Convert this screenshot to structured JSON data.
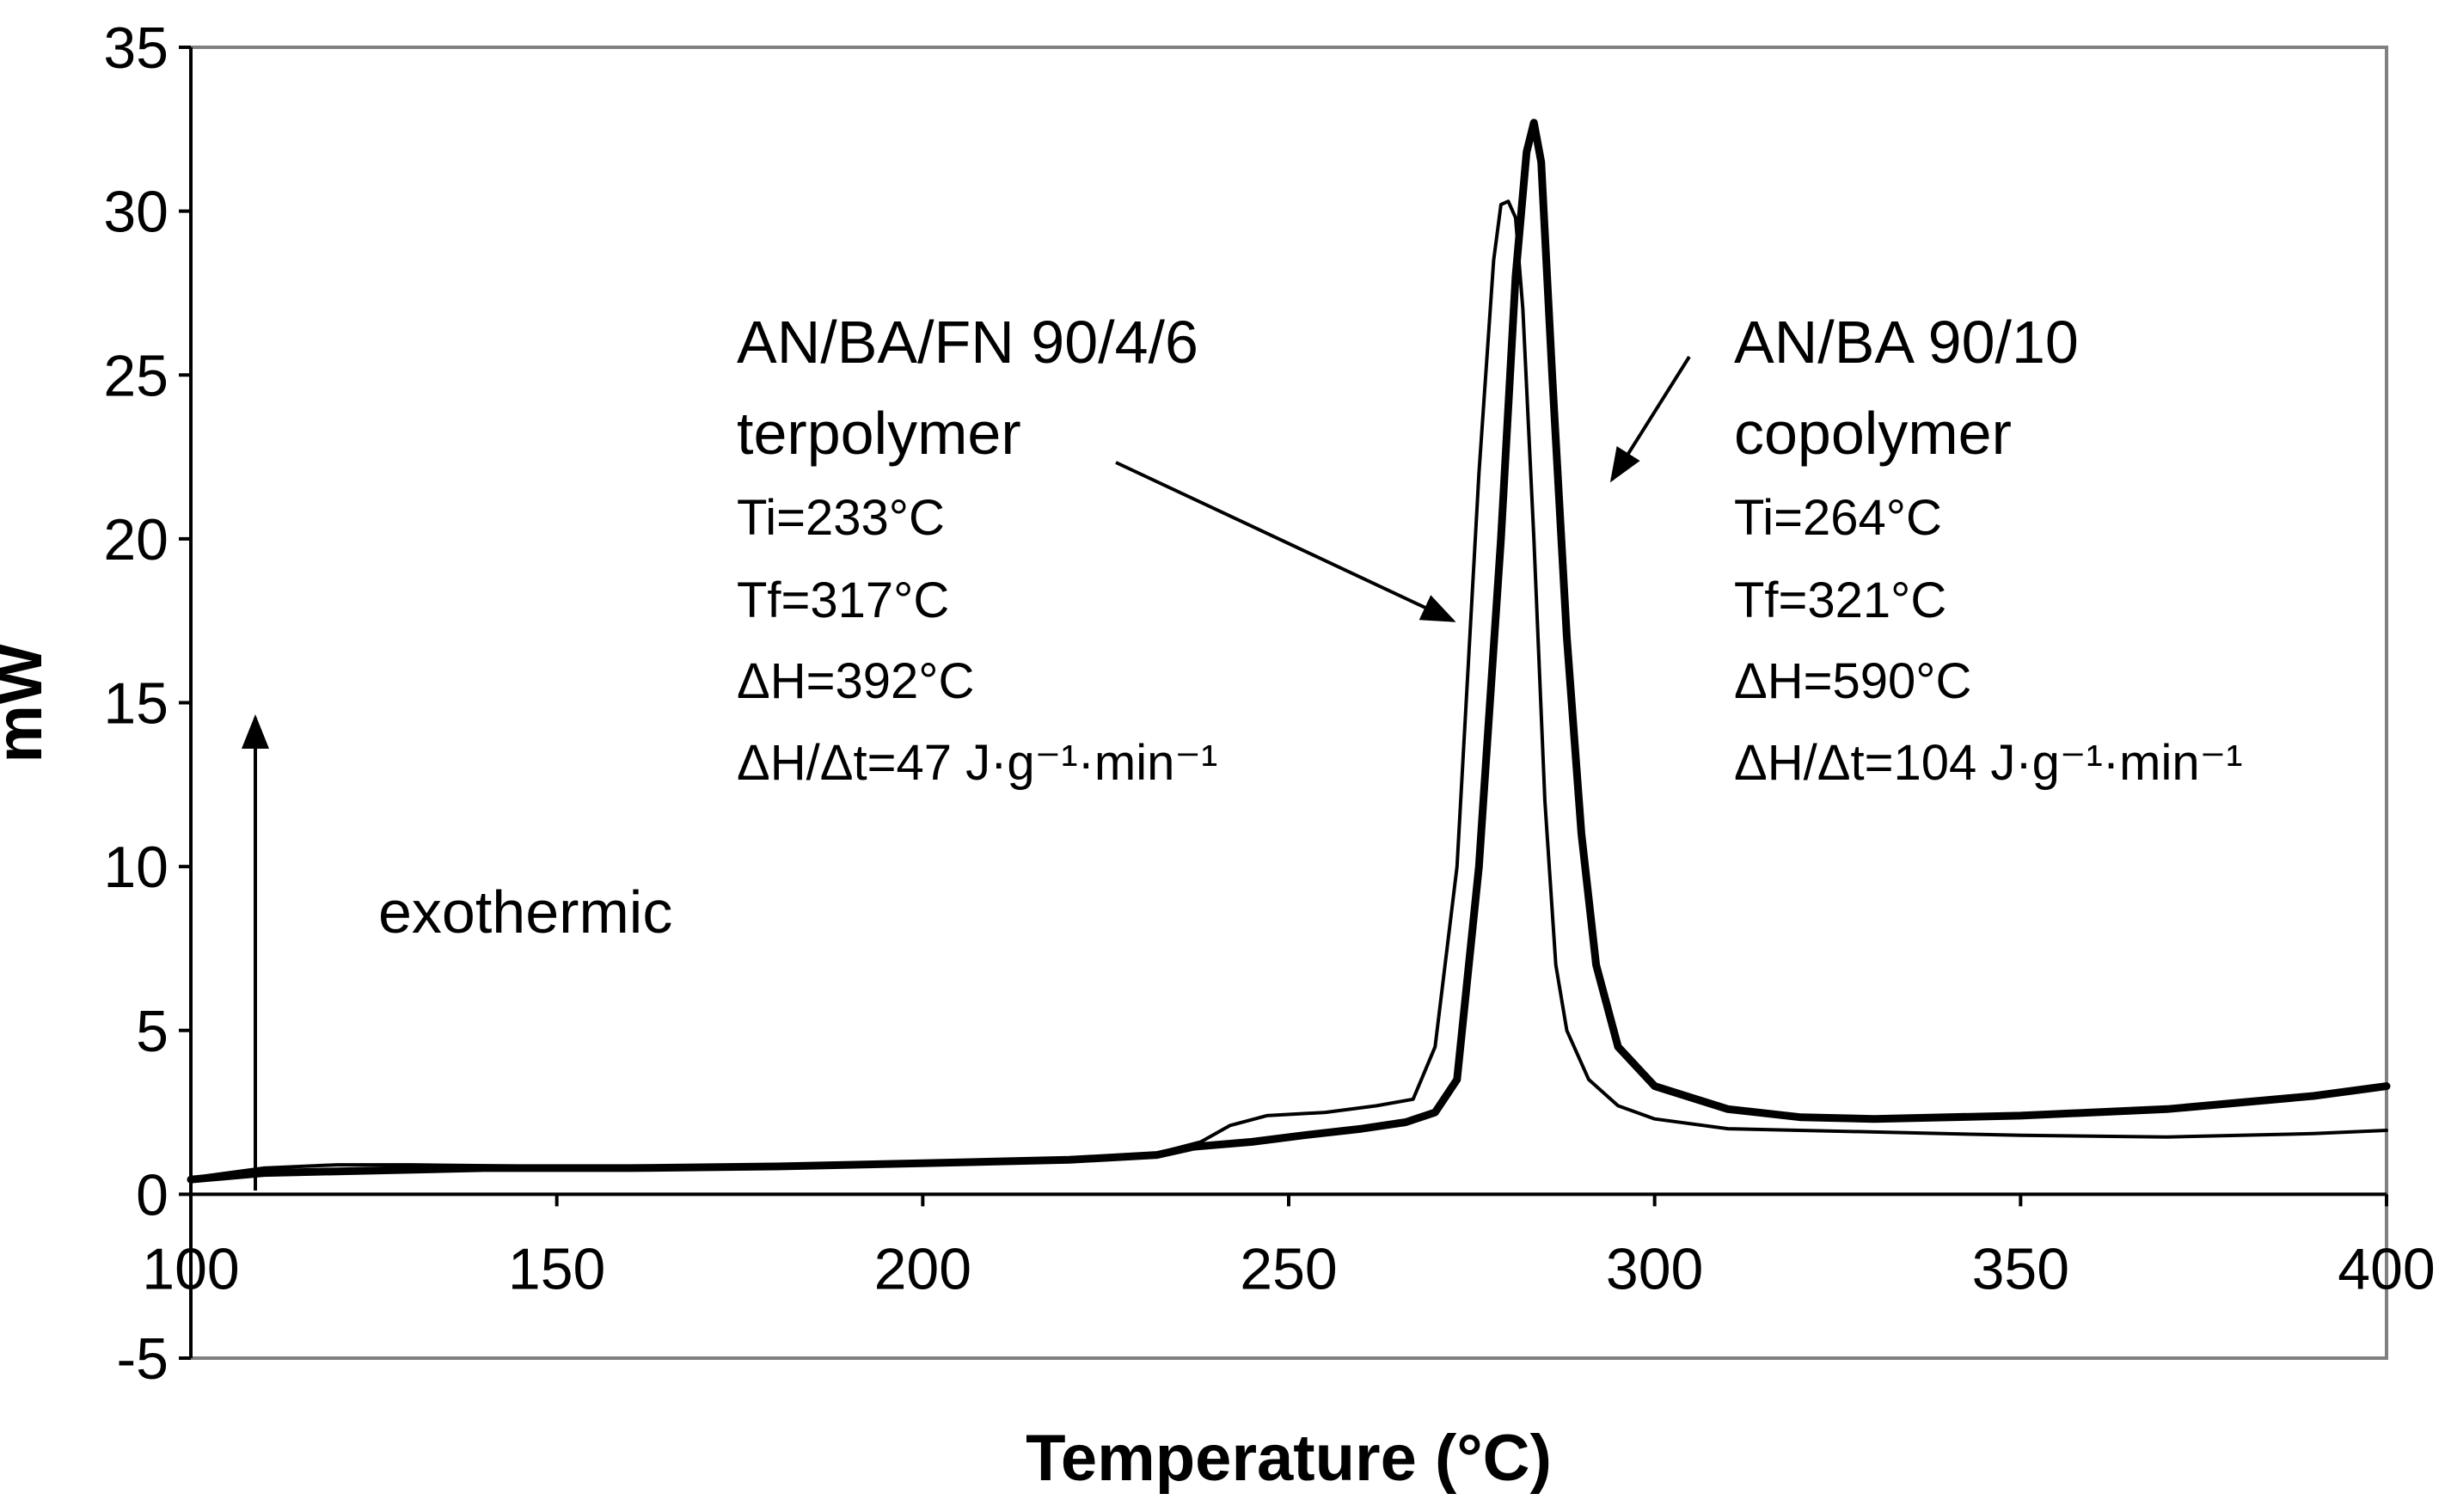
{
  "chart_data": {
    "type": "line",
    "title": "",
    "xlabel": "Temperature (°C)",
    "ylabel": "mW",
    "xlim": [
      100,
      400
    ],
    "ylim": [
      -5,
      35
    ],
    "xticks": [
      100,
      150,
      200,
      250,
      300,
      350,
      400
    ],
    "yticks": [
      35,
      30,
      25,
      20,
      15,
      10,
      5,
      0,
      -5
    ],
    "grid": false,
    "series": [
      {
        "style": "thin",
        "color": "#000000",
        "points": [
          [
            100,
            0.5
          ],
          [
            110,
            0.8
          ],
          [
            120,
            0.9
          ],
          [
            130,
            0.9
          ],
          [
            150,
            0.85
          ],
          [
            170,
            0.85
          ],
          [
            200,
            0.95
          ],
          [
            220,
            1.1
          ],
          [
            232,
            1.25
          ],
          [
            238,
            1.6
          ],
          [
            242,
            2.1
          ],
          [
            247,
            2.4
          ],
          [
            255,
            2.5
          ],
          [
            262,
            2.7
          ],
          [
            267,
            2.9
          ],
          [
            270,
            4.5
          ],
          [
            273,
            10
          ],
          [
            276,
            22
          ],
          [
            278,
            28.5
          ],
          [
            279,
            30.2
          ],
          [
            280,
            30.3
          ],
          [
            281,
            29.8
          ],
          [
            282,
            27
          ],
          [
            283.5,
            20
          ],
          [
            285,
            12
          ],
          [
            286.5,
            7
          ],
          [
            288,
            5
          ],
          [
            291,
            3.5
          ],
          [
            295,
            2.7
          ],
          [
            300,
            2.3
          ],
          [
            310,
            2.0
          ],
          [
            330,
            1.9
          ],
          [
            350,
            1.8
          ],
          [
            370,
            1.75
          ],
          [
            390,
            1.85
          ],
          [
            400,
            1.95
          ]
        ]
      },
      {
        "style": "thick",
        "color": "#000000",
        "points": [
          [
            100,
            0.45
          ],
          [
            110,
            0.65
          ],
          [
            120,
            0.7
          ],
          [
            140,
            0.8
          ],
          [
            160,
            0.8
          ],
          [
            180,
            0.85
          ],
          [
            200,
            0.95
          ],
          [
            220,
            1.05
          ],
          [
            232,
            1.2
          ],
          [
            237,
            1.45
          ],
          [
            245,
            1.6
          ],
          [
            252,
            1.8
          ],
          [
            260,
            2.0
          ],
          [
            266,
            2.2
          ],
          [
            270,
            2.5
          ],
          [
            273,
            3.5
          ],
          [
            276,
            10
          ],
          [
            279,
            20
          ],
          [
            281,
            28
          ],
          [
            282.5,
            31.8
          ],
          [
            283.5,
            32.7
          ],
          [
            284.5,
            31.5
          ],
          [
            286,
            25
          ],
          [
            288,
            17
          ],
          [
            290,
            11
          ],
          [
            292,
            7
          ],
          [
            295,
            4.5
          ],
          [
            300,
            3.3
          ],
          [
            310,
            2.6
          ],
          [
            320,
            2.35
          ],
          [
            330,
            2.3
          ],
          [
            350,
            2.4
          ],
          [
            370,
            2.6
          ],
          [
            390,
            3.0
          ],
          [
            400,
            3.3
          ]
        ]
      }
    ],
    "annotations": {
      "terpolymer_label": "AN/BA/FN 90/4/6",
      "terpolymer_sub": "terpolymer",
      "terpolymer_ti": "Ti=233°C",
      "terpolymer_tf": "Tf=317°C",
      "terpolymer_dh": "ΔH=392°C",
      "terpolymer_rate": "ΔH/Δt=47 J·g⁻¹·min⁻¹",
      "copolymer_label": "AN/BA 90/10",
      "copolymer_sub": "copolymer",
      "copolymer_ti": "Ti=264°C",
      "copolymer_tf": "Tf=321°C",
      "copolymer_dh": "ΔH=590°C",
      "copolymer_rate": "ΔH/Δt=104 J·g⁻¹·min⁻¹",
      "exothermic": "exothermic"
    }
  }
}
